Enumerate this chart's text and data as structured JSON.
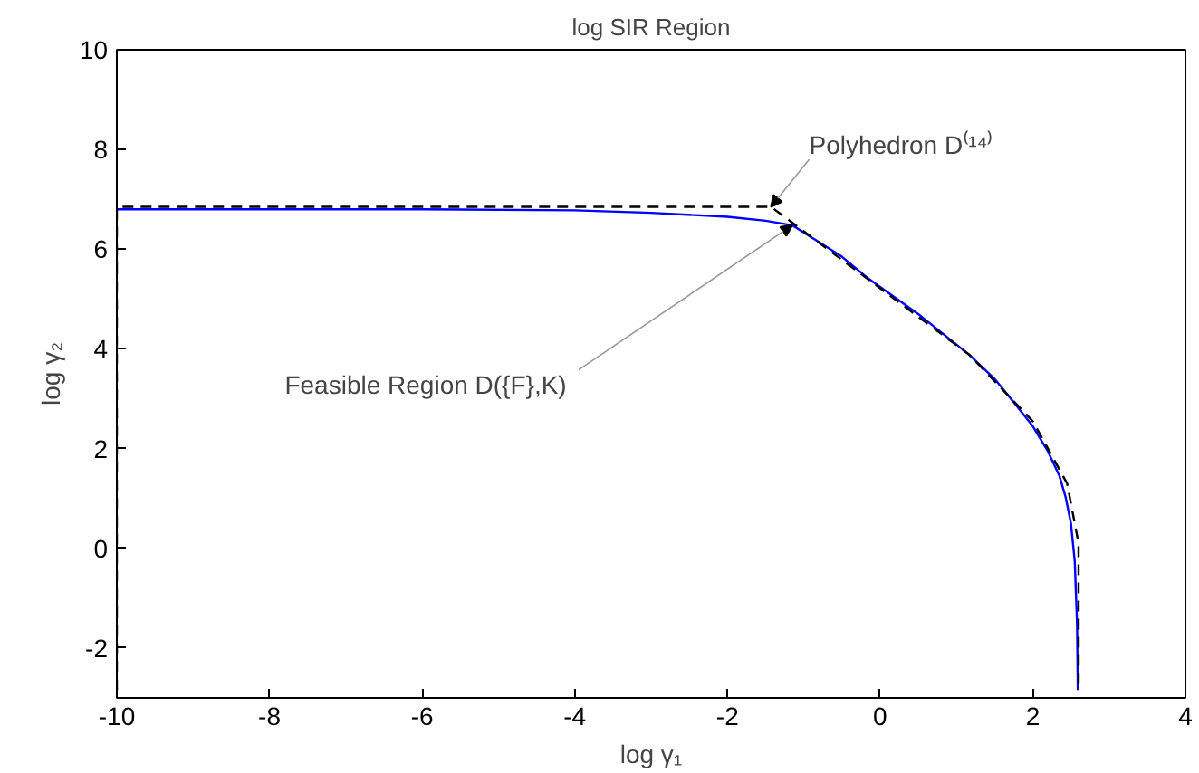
{
  "chart_data": {
    "type": "line",
    "title": "log SIR Region",
    "xlabel": "log γ₁",
    "ylabel": "log γ₂",
    "xlim": [
      -10,
      4
    ],
    "ylim": [
      -3,
      10
    ],
    "xticks": [
      -10,
      -8,
      -6,
      -4,
      -2,
      0,
      2,
      4
    ],
    "yticks": [
      -2,
      0,
      2,
      4,
      6,
      8,
      10
    ],
    "grid": false,
    "marker": "none",
    "series": [
      {
        "color": "#0000ff",
        "line_style": "solid",
        "x": [
          -10,
          -6,
          -4,
          -3,
          -2,
          -1.5,
          -1.15,
          -0.5,
          -0.17,
          0.5,
          1.17,
          1.5,
          1.73,
          2.0,
          2.2,
          2.35,
          2.43,
          2.5,
          2.55,
          2.58,
          2.59
        ],
        "values": [
          6.8,
          6.8,
          6.78,
          6.73,
          6.65,
          6.57,
          6.48,
          5.85,
          5.43,
          4.7,
          3.88,
          3.4,
          2.97,
          2.45,
          1.94,
          1.45,
          1.03,
          0.5,
          -0.26,
          -1.5,
          -2.84
        ]
      },
      {
        "color": "#000000",
        "line_style": "dashed",
        "x": [
          -10,
          -10,
          -1.43,
          1.17,
          2.0,
          2.45,
          2.6,
          2.6
        ],
        "values": [
          -2.84,
          6.85,
          6.85,
          3.88,
          2.55,
          1.3,
          0.1,
          -2.84
        ]
      }
    ],
    "annotations": [
      {
        "text": "Polyhedron D⁽¹⁴⁾",
        "x": -1.43,
        "y": 6.85
      },
      {
        "text": "Feasible Region D({F},K)",
        "x": -1.15,
        "y": 6.48
      }
    ]
  }
}
